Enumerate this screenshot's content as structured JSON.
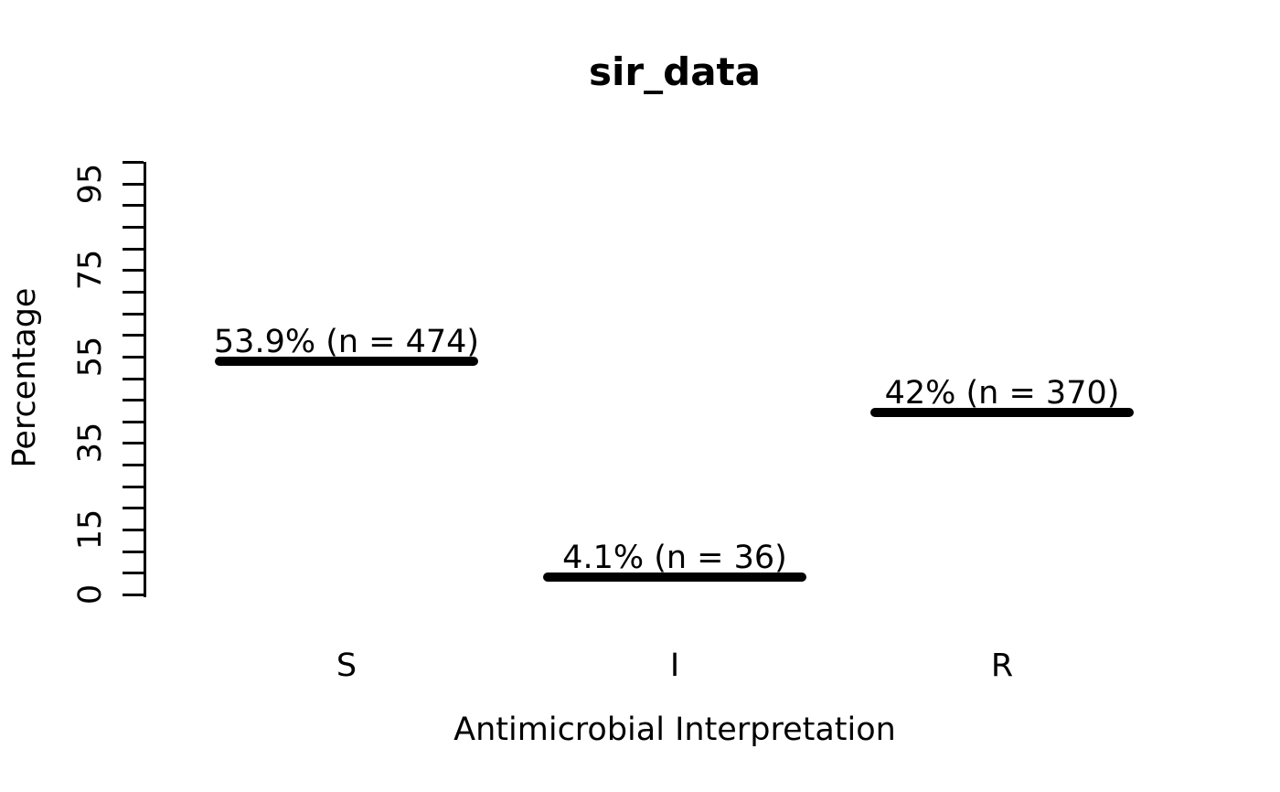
{
  "chart_data": {
    "type": "bar",
    "title": "sir_data",
    "xlabel": "Antimicrobial Interpretation",
    "ylabel": "Percentage",
    "categories": [
      "S",
      "I",
      "R"
    ],
    "values": [
      53.9,
      4.1,
      42
    ],
    "counts": [
      474,
      36,
      370
    ],
    "bar_labels": [
      "53.9% (n = 474)",
      "4.1% (n = 36)",
      "42% (n = 370)"
    ],
    "ylim": [
      0,
      100
    ],
    "y_minor_tick_step": 5,
    "y_labeled_ticks": [
      0,
      15,
      35,
      55,
      75,
      95
    ],
    "grid": false,
    "legend_position": "none",
    "mark_style": "thick-horizontal-line",
    "colors": {
      "marks": "#000000",
      "text": "#000000",
      "background": "#ffffff"
    }
  }
}
